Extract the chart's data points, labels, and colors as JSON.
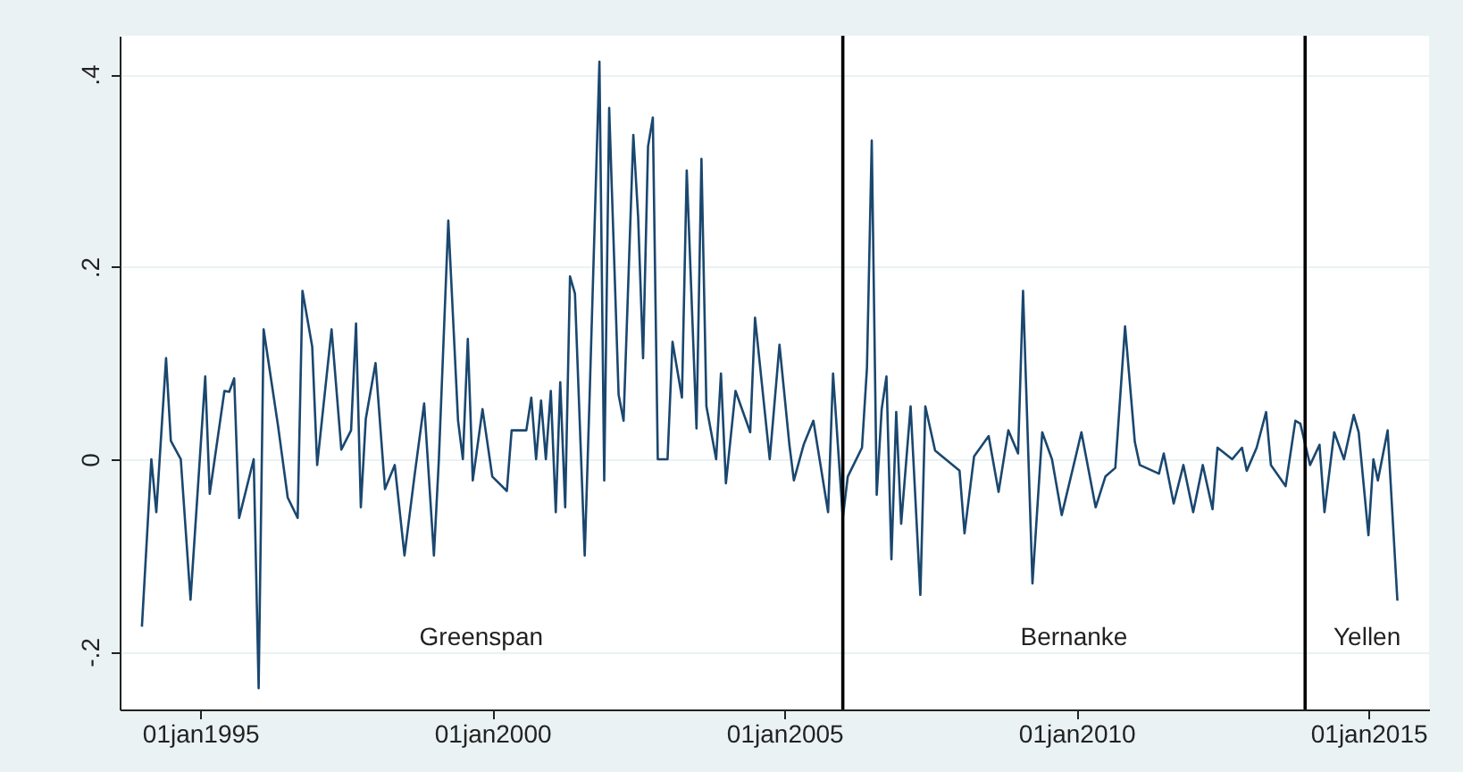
{
  "chart_data": {
    "type": "line",
    "x": [
      "1994-01",
      "1994-03",
      "1994-04",
      "1994-06",
      "1994-07",
      "1994-09",
      "1994-11",
      "1995-02",
      "1995-03",
      "1995-06",
      "1995-07",
      "1995-08",
      "1995-09",
      "1995-12",
      "1996-01",
      "1996-02",
      "1996-05",
      "1996-07",
      "1996-09",
      "1996-10",
      "1996-12",
      "1997-01",
      "1997-04",
      "1997-06",
      "1997-08",
      "1997-09",
      "1997-10",
      "1997-11",
      "1998-01",
      "1998-03",
      "1998-05",
      "1998-07",
      "1998-09",
      "1998-11",
      "1999-01",
      "1999-02",
      "1999-04",
      "1999-06",
      "1999-07",
      "1999-08",
      "1999-09",
      "1999-11",
      "2000-01",
      "2000-04",
      "2000-05",
      "2000-08",
      "2000-09",
      "2000-10",
      "2000-11",
      "2000-12",
      "2001-01",
      "2001-02",
      "2001-03",
      "2001-04",
      "2001-05",
      "2001-06",
      "2001-08",
      "2001-09",
      "2001-11",
      "2001-12",
      "2002-01",
      "2002-03",
      "2002-04",
      "2002-06",
      "2002-07",
      "2002-08",
      "2002-09",
      "2002-10",
      "2002-11",
      "2003-01",
      "2003-02",
      "2003-04",
      "2003-05",
      "2003-07",
      "2003-08",
      "2003-09",
      "2003-11",
      "2003-12",
      "2004-01",
      "2004-03",
      "2004-06",
      "2004-07",
      "2004-10",
      "2004-12",
      "2005-02",
      "2005-03",
      "2005-05",
      "2005-07",
      "2005-10",
      "2005-11",
      "2006-01",
      "2006-02",
      "2006-05",
      "2006-06",
      "2006-07",
      "2006-08",
      "2006-09",
      "2006-10",
      "2006-11",
      "2006-12",
      "2007-01",
      "2007-03",
      "2007-05",
      "2007-06",
      "2007-08",
      "2008-01",
      "2008-02",
      "2008-04",
      "2008-07",
      "2008-09",
      "2008-11",
      "2009-01",
      "2009-02",
      "2009-04",
      "2009-06",
      "2009-08",
      "2009-10",
      "2010-01",
      "2010-02",
      "2010-05",
      "2010-07",
      "2010-09",
      "2010-11",
      "2011-01",
      "2011-02",
      "2011-06",
      "2011-07",
      "2011-09",
      "2011-11",
      "2012-01",
      "2012-03",
      "2012-05",
      "2012-06",
      "2012-09",
      "2012-11",
      "2012-12",
      "2013-02",
      "2013-04",
      "2013-05",
      "2013-08",
      "2013-10",
      "2013-11",
      "2014-01",
      "2014-03",
      "2014-04",
      "2014-06",
      "2014-08",
      "2014-10",
      "2014-11",
      "2015-01",
      "2015-02",
      "2015-03",
      "2015-05",
      "2015-07"
    ],
    "series": [
      {
        "color": "#1a476f",
        "values": [
          -0.174,
          0,
          -0.055,
          0.105,
          0.019,
          0,
          -0.146,
          0.086,
          -0.036,
          0.071,
          0.07,
          0.084,
          -0.061,
          0,
          -0.238,
          0.135,
          0.035,
          -0.04,
          -0.061,
          0.175,
          0.117,
          -0.006,
          0.135,
          0.01,
          0.03,
          0.141,
          -0.05,
          0.042,
          0.1,
          -0.031,
          -0.006,
          -0.1,
          -0.018,
          0.058,
          -0.1,
          0,
          0.248,
          0.04,
          0,
          0.125,
          -0.022,
          0.052,
          -0.018,
          -0.033,
          0.03,
          0.03,
          0.064,
          0,
          0.061,
          0,
          0.071,
          -0.055,
          0.08,
          -0.05,
          0.19,
          0.172,
          -0.1,
          0.067,
          0.413,
          -0.022,
          0.365,
          0.067,
          0.04,
          0.337,
          0.252,
          0.105,
          0.325,
          0.355,
          0,
          0,
          0.122,
          0.064,
          0.3,
          0.032,
          0.312,
          0.055,
          0,
          0.089,
          -0.025,
          0.071,
          0.028,
          0.147,
          0,
          0.119,
          0.015,
          -0.022,
          0.015,
          0.04,
          -0.055,
          0.089,
          -0.061,
          -0.018,
          0.012,
          0.095,
          0.331,
          -0.037,
          0.052,
          0.086,
          -0.104,
          0.049,
          -0.067,
          0.055,
          -0.141,
          0.055,
          0.009,
          -0.012,
          -0.077,
          0.003,
          0.024,
          -0.034,
          0.03,
          0.006,
          0.175,
          -0.129,
          0.028,
          0,
          -0.058,
          0.006,
          0.028,
          -0.05,
          -0.018,
          -0.009,
          0.138,
          0.018,
          -0.006,
          -0.015,
          0.006,
          -0.046,
          -0.006,
          -0.055,
          -0.006,
          -0.052,
          0.012,
          0,
          0.012,
          -0.012,
          0.012,
          0.049,
          -0.006,
          -0.028,
          0.04,
          0.037,
          -0.006,
          0.015,
          -0.055,
          0.028,
          0,
          0.046,
          0.028,
          -0.079,
          0,
          -0.022,
          0.03,
          -0.147
        ]
      }
    ],
    "xlim": [
      "1993-08-15",
      "2016-01-15"
    ],
    "xticks": [
      {
        "value": "1995-01-01",
        "label": "01jan1995"
      },
      {
        "value": "2000-01-01",
        "label": "01jan2000"
      },
      {
        "value": "2005-01-01",
        "label": "01jan2005"
      },
      {
        "value": "2010-01-01",
        "label": "01jan2010"
      },
      {
        "value": "2015-01-01",
        "label": "01jan2015"
      }
    ],
    "ylim": [
      -0.26,
      0.44
    ],
    "yticks": [
      {
        "value": -0.2,
        "label": "-.2"
      },
      {
        "value": 0,
        "label": "0"
      },
      {
        "value": 0.2,
        "label": ".2"
      },
      {
        "value": 0.4,
        "label": ".4"
      }
    ],
    "grid": "y",
    "ref_lines": [
      {
        "axis": "x",
        "value": "2006-01",
        "color": "#000000"
      },
      {
        "axis": "x",
        "value": "2013-12",
        "color": "#000000"
      }
    ],
    "annotations": [
      "Greenspan",
      "Bernanke",
      "Yellen"
    ]
  }
}
